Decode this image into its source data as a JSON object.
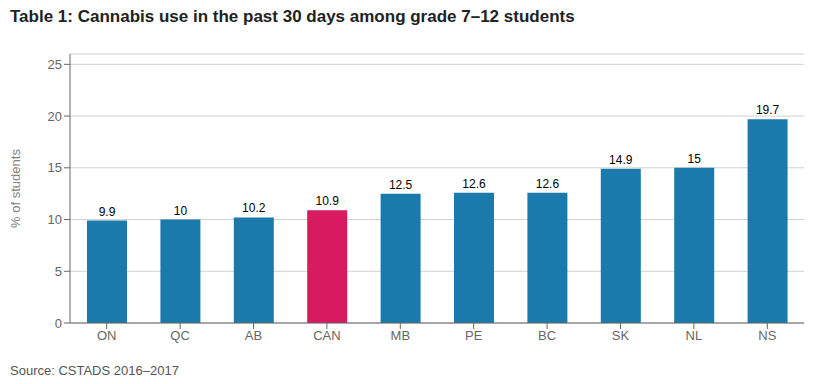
{
  "chart_data": {
    "type": "bar",
    "title": "Table 1: Cannabis use in the past 30 days among grade 7–12 students",
    "source": "Source: CSTADS 2016–2017",
    "ylabel": "% of students",
    "categories": [
      "ON",
      "QC",
      "AB",
      "CAN",
      "MB",
      "PE",
      "BC",
      "SK",
      "NL",
      "NS"
    ],
    "values": [
      9.9,
      10.0,
      10.2,
      10.9,
      12.5,
      12.6,
      12.6,
      14.9,
      15.0,
      19.7
    ],
    "colors": [
      "#1a7aab",
      "#1a7aab",
      "#1a7aab",
      "#d81b60",
      "#1a7aab",
      "#1a7aab",
      "#1a7aab",
      "#1a7aab",
      "#1a7aab",
      "#1a7aab"
    ],
    "ylim": [
      0,
      26
    ],
    "yticks": [
      0,
      5,
      10,
      15,
      20,
      25
    ],
    "grid": true,
    "data_labels": true
  }
}
